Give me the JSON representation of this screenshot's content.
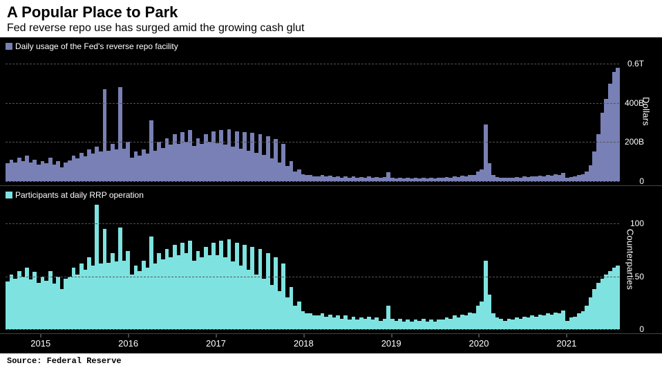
{
  "header": {
    "title": "A Popular Place to Park",
    "subtitle": "Fed reverse repo use has surged amid the growing cash glut"
  },
  "footer": {
    "source": "Source: Federal Reserve"
  },
  "chart": {
    "background_color": "#000000",
    "text_color": "#ffffff",
    "grid_color": "#555555",
    "x_axis": {
      "labels": [
        "2015",
        "2016",
        "2017",
        "2018",
        "2019",
        "2020",
        "2021"
      ],
      "label_fontsize": 13
    },
    "panels": [
      {
        "legend_label": "Daily usage of the Fed's reverse repo facility",
        "legend_color": "#7880b5",
        "series_color": "#7880b5",
        "y_axis_label": "Dollars",
        "y_ticks": [
          {
            "value": 0,
            "label": "0"
          },
          {
            "value": 200,
            "label": "200B"
          },
          {
            "value": 400,
            "label": "400B"
          },
          {
            "value": 600,
            "label": "0.6T"
          }
        ],
        "ylim": [
          0,
          650
        ],
        "type": "bar",
        "bar_width_ratio": 1.0,
        "values": [
          90,
          110,
          95,
          120,
          100,
          130,
          95,
          110,
          85,
          100,
          90,
          120,
          85,
          100,
          70,
          95,
          105,
          130,
          115,
          145,
          125,
          160,
          140,
          175,
          150,
          470,
          155,
          190,
          160,
          480,
          165,
          200,
          120,
          150,
          130,
          160,
          140,
          310,
          155,
          200,
          170,
          220,
          185,
          240,
          190,
          250,
          200,
          260,
          180,
          220,
          190,
          240,
          200,
          255,
          195,
          260,
          185,
          265,
          175,
          255,
          165,
          250,
          155,
          245,
          145,
          240,
          135,
          230,
          115,
          215,
          95,
          190,
          75,
          100,
          50,
          60,
          35,
          30,
          30,
          25,
          25,
          30,
          22,
          28,
          20,
          25,
          18,
          24,
          17,
          22,
          16,
          20,
          18,
          22,
          17,
          20,
          15,
          19,
          45,
          18,
          14,
          18,
          13,
          17,
          12,
          17,
          14,
          18,
          13,
          17,
          12,
          17,
          16,
          20,
          18,
          25,
          20,
          28,
          25,
          32,
          30,
          50,
          60,
          290,
          90,
          30,
          20,
          18,
          15,
          18,
          16,
          20,
          18,
          22,
          20,
          25,
          22,
          28,
          25,
          30,
          28,
          35,
          30,
          40,
          15,
          20,
          22,
          30,
          35,
          50,
          80,
          150,
          240,
          350,
          420,
          500,
          560,
          580
        ]
      },
      {
        "legend_label": "Participants at daily RRP operation",
        "legend_color": "#7ee3e0",
        "series_color": "#7ee3e0",
        "y_axis_label": "Counterparties",
        "y_ticks": [
          {
            "value": 0,
            "label": "0"
          },
          {
            "value": 50,
            "label": "50"
          },
          {
            "value": 100,
            "label": "100"
          }
        ],
        "ylim": [
          0,
          120
        ],
        "type": "bar",
        "bar_width_ratio": 1.0,
        "values": [
          45,
          52,
          48,
          55,
          50,
          58,
          47,
          54,
          44,
          50,
          46,
          55,
          43,
          50,
          38,
          48,
          50,
          58,
          52,
          62,
          56,
          68,
          60,
          118,
          62,
          95,
          63,
          72,
          64,
          96,
          65,
          74,
          52,
          60,
          55,
          65,
          58,
          88,
          62,
          72,
          66,
          76,
          68,
          80,
          70,
          82,
          72,
          84,
          65,
          74,
          68,
          78,
          70,
          82,
          70,
          84,
          68,
          85,
          64,
          82,
          60,
          80,
          56,
          78,
          52,
          76,
          48,
          72,
          42,
          68,
          36,
          62,
          30,
          40,
          22,
          26,
          17,
          15,
          15,
          13,
          13,
          15,
          12,
          14,
          11,
          13,
          10,
          13,
          9,
          12,
          9,
          11,
          10,
          12,
          9,
          11,
          8,
          10,
          22,
          10,
          8,
          10,
          7,
          9,
          7,
          9,
          8,
          10,
          7,
          9,
          7,
          9,
          9,
          11,
          10,
          13,
          11,
          14,
          13,
          16,
          15,
          22,
          26,
          65,
          33,
          15,
          11,
          10,
          8,
          10,
          9,
          11,
          10,
          12,
          11,
          13,
          12,
          14,
          13,
          15,
          14,
          16,
          15,
          18,
          8,
          11,
          12,
          15,
          17,
          22,
          30,
          38,
          44,
          48,
          52,
          55,
          58,
          60
        ]
      }
    ]
  }
}
